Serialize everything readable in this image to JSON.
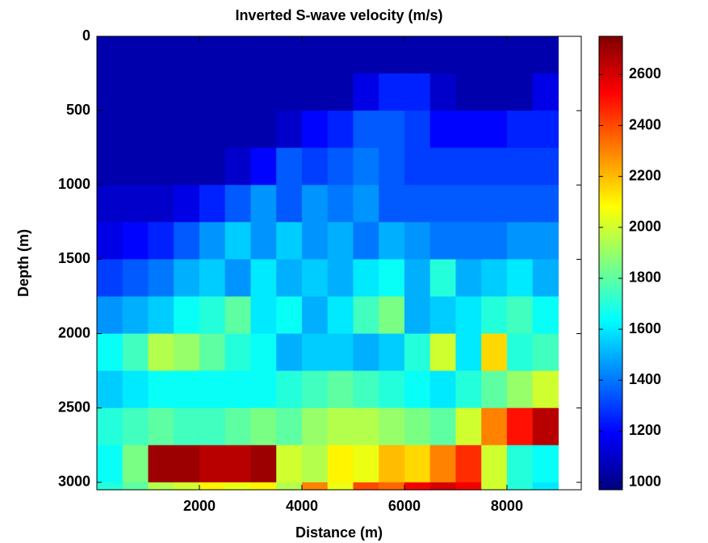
{
  "chart_data": {
    "type": "heatmap",
    "title": "Inverted S-wave velocity (m/s)",
    "x_label": "Distance (m)",
    "y_label": "Depth (m)",
    "colormap": "jet",
    "x_edges": [
      0,
      500,
      1000,
      1500,
      2000,
      2500,
      3000,
      3500,
      4000,
      4500,
      5000,
      5500,
      6000,
      6500,
      7000,
      7500,
      8000,
      8500,
      9000
    ],
    "y_edges": [
      0,
      250,
      500,
      750,
      1000,
      1250,
      1500,
      1750,
      2000,
      2250,
      2500,
      2750,
      3000,
      3050
    ],
    "z": [
      [
        1050,
        1050,
        1050,
        1050,
        1050,
        1050,
        1050,
        1050,
        1050,
        1050,
        1050,
        1050,
        1050,
        1050,
        1050,
        1050,
        1050,
        1050
      ],
      [
        1050,
        1050,
        1050,
        1050,
        1050,
        1050,
        1050,
        1050,
        1050,
        1050,
        1150,
        1250,
        1250,
        1100,
        1050,
        1050,
        1050,
        1150
      ],
      [
        1050,
        1050,
        1050,
        1050,
        1050,
        1050,
        1050,
        1100,
        1200,
        1250,
        1350,
        1350,
        1300,
        1200,
        1200,
        1200,
        1250,
        1250
      ],
      [
        1050,
        1050,
        1050,
        1050,
        1050,
        1100,
        1200,
        1350,
        1300,
        1350,
        1400,
        1350,
        1300,
        1300,
        1300,
        1300,
        1300,
        1300
      ],
      [
        1100,
        1100,
        1100,
        1150,
        1250,
        1350,
        1450,
        1350,
        1450,
        1400,
        1450,
        1350,
        1350,
        1350,
        1350,
        1350,
        1350,
        1350
      ],
      [
        1150,
        1200,
        1250,
        1350,
        1450,
        1550,
        1450,
        1550,
        1450,
        1500,
        1400,
        1500,
        1450,
        1400,
        1400,
        1400,
        1450,
        1450
      ],
      [
        1300,
        1350,
        1400,
        1500,
        1550,
        1450,
        1600,
        1500,
        1550,
        1500,
        1600,
        1650,
        1500,
        1700,
        1500,
        1550,
        1600,
        1500
      ],
      [
        1450,
        1500,
        1550,
        1650,
        1700,
        1800,
        1600,
        1650,
        1500,
        1600,
        1750,
        1850,
        1500,
        1550,
        1600,
        1700,
        1750,
        1650
      ],
      [
        1650,
        1750,
        1950,
        1900,
        1800,
        1700,
        1650,
        1500,
        1550,
        1550,
        1500,
        1550,
        1700,
        2000,
        1600,
        2150,
        1700,
        1750
      ],
      [
        1550,
        1600,
        1650,
        1650,
        1650,
        1650,
        1650,
        1700,
        1750,
        1800,
        1750,
        1700,
        1650,
        1600,
        1700,
        1800,
        1900,
        2000
      ],
      [
        1700,
        1750,
        1800,
        1750,
        1750,
        1800,
        1850,
        1800,
        1900,
        1950,
        1950,
        1900,
        1850,
        1800,
        2000,
        2300,
        2500,
        2650
      ],
      [
        1650,
        1850,
        2700,
        2700,
        2650,
        2650,
        2700,
        2000,
        1950,
        2100,
        2050,
        2200,
        2150,
        2300,
        2450,
        2000,
        1700,
        1650
      ],
      [
        1700,
        1800,
        1950,
        2000,
        2100,
        2050,
        2100,
        1950,
        2300,
        2050,
        2400,
        2350,
        2550,
        2600,
        2550,
        2000,
        1700,
        1600
      ]
    ],
    "xlim": [
      0,
      9450
    ],
    "ylim": [
      0,
      3050
    ],
    "y_reversed": true,
    "xticks": [
      2000,
      4000,
      6000,
      8000
    ],
    "yticks": [
      0,
      500,
      1000,
      1500,
      2000,
      2500,
      3000
    ],
    "clim": [
      970,
      2750
    ],
    "cticks": [
      1000,
      1200,
      1400,
      1600,
      1800,
      2000,
      2200,
      2400,
      2600
    ]
  }
}
